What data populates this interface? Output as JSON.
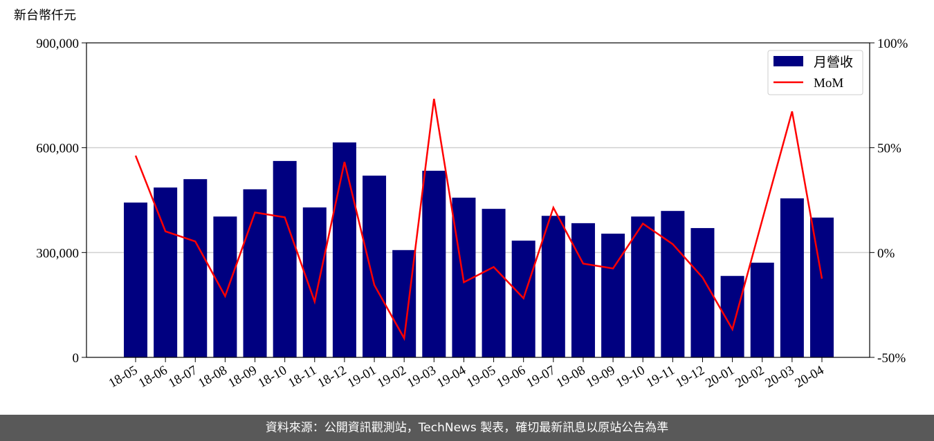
{
  "chart_data": {
    "type": "bar",
    "y_label": "新台幣仟元",
    "categories": [
      "18-05",
      "18-06",
      "18-07",
      "18-08",
      "18-09",
      "18-10",
      "18-11",
      "18-12",
      "19-01",
      "19-02",
      "19-03",
      "19-04",
      "19-05",
      "19-06",
      "19-07",
      "19-08",
      "19-09",
      "19-10",
      "19-11",
      "19-12",
      "20-01",
      "20-02",
      "20-03",
      "20-04"
    ],
    "series": [
      {
        "name": "月營收",
        "type": "bar",
        "color": "#000080",
        "values": [
          443000,
          486000,
          510000,
          403000,
          481000,
          562000,
          429000,
          615000,
          520000,
          307000,
          534000,
          457000,
          425000,
          334000,
          405000,
          384000,
          354000,
          403000,
          419000,
          370000,
          233000,
          271000,
          455000,
          400000
        ]
      },
      {
        "name": "MoM",
        "type": "line",
        "axis": "y2",
        "color": "#ff0000",
        "values": [
          46.2,
          10.1,
          5.3,
          -20.8,
          19.1,
          16.8,
          -23.4,
          43.2,
          -15.5,
          -40.9,
          73.3,
          -14.2,
          -6.9,
          -21.8,
          21.4,
          -5.3,
          -7.6,
          13.8,
          4.0,
          -11.9,
          -36.6,
          15.5,
          67.3,
          -12.5
        ]
      }
    ],
    "ylim": [
      0,
      900000
    ],
    "yticks": [
      0,
      {
        "value": 300000,
        "label": "300,000"
      },
      {
        "value": 600000,
        "label": "600,000"
      },
      {
        "value": 900000,
        "label": "900,000"
      }
    ],
    "y2lim": [
      -50,
      100
    ],
    "y2ticks": [
      {
        "value": -50,
        "label": "-50%"
      },
      {
        "value": 0,
        "label": "0%"
      },
      {
        "value": 50,
        "label": "50%"
      },
      {
        "value": 100,
        "label": "100%"
      }
    ],
    "grid": true,
    "legend": "upper right"
  },
  "footer": "資料來源：公開資訊觀測站，TechNews 製表，確切最新訊息以原站公告為準"
}
